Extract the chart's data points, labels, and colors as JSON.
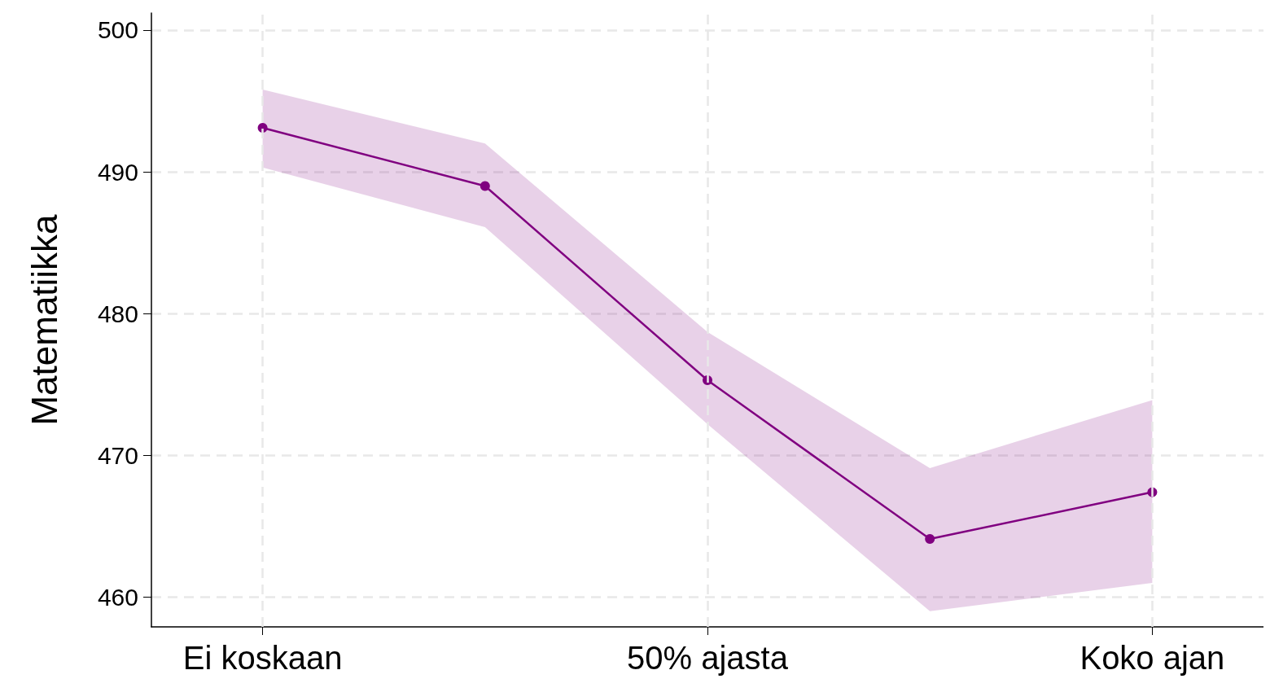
{
  "chart_data": {
    "type": "line",
    "ylabel": "Matematiikka",
    "categories": [
      "Ei koskaan",
      null,
      "50% ajasta",
      null,
      "Koko ajan"
    ],
    "series": [
      {
        "color": "#800080",
        "values": [
          493.1,
          489.0,
          475.3,
          464.1,
          467.4
        ],
        "lower": [
          490.3,
          486.1,
          472.2,
          459.0,
          461.0
        ],
        "upper": [
          495.8,
          492.0,
          478.7,
          469.1,
          473.9
        ]
      }
    ],
    "ylim": [
      457.9,
      501.2
    ],
    "yticks": [
      460,
      470,
      480,
      490,
      500
    ],
    "grid": true,
    "marker": "circle",
    "line_style": "solid"
  }
}
